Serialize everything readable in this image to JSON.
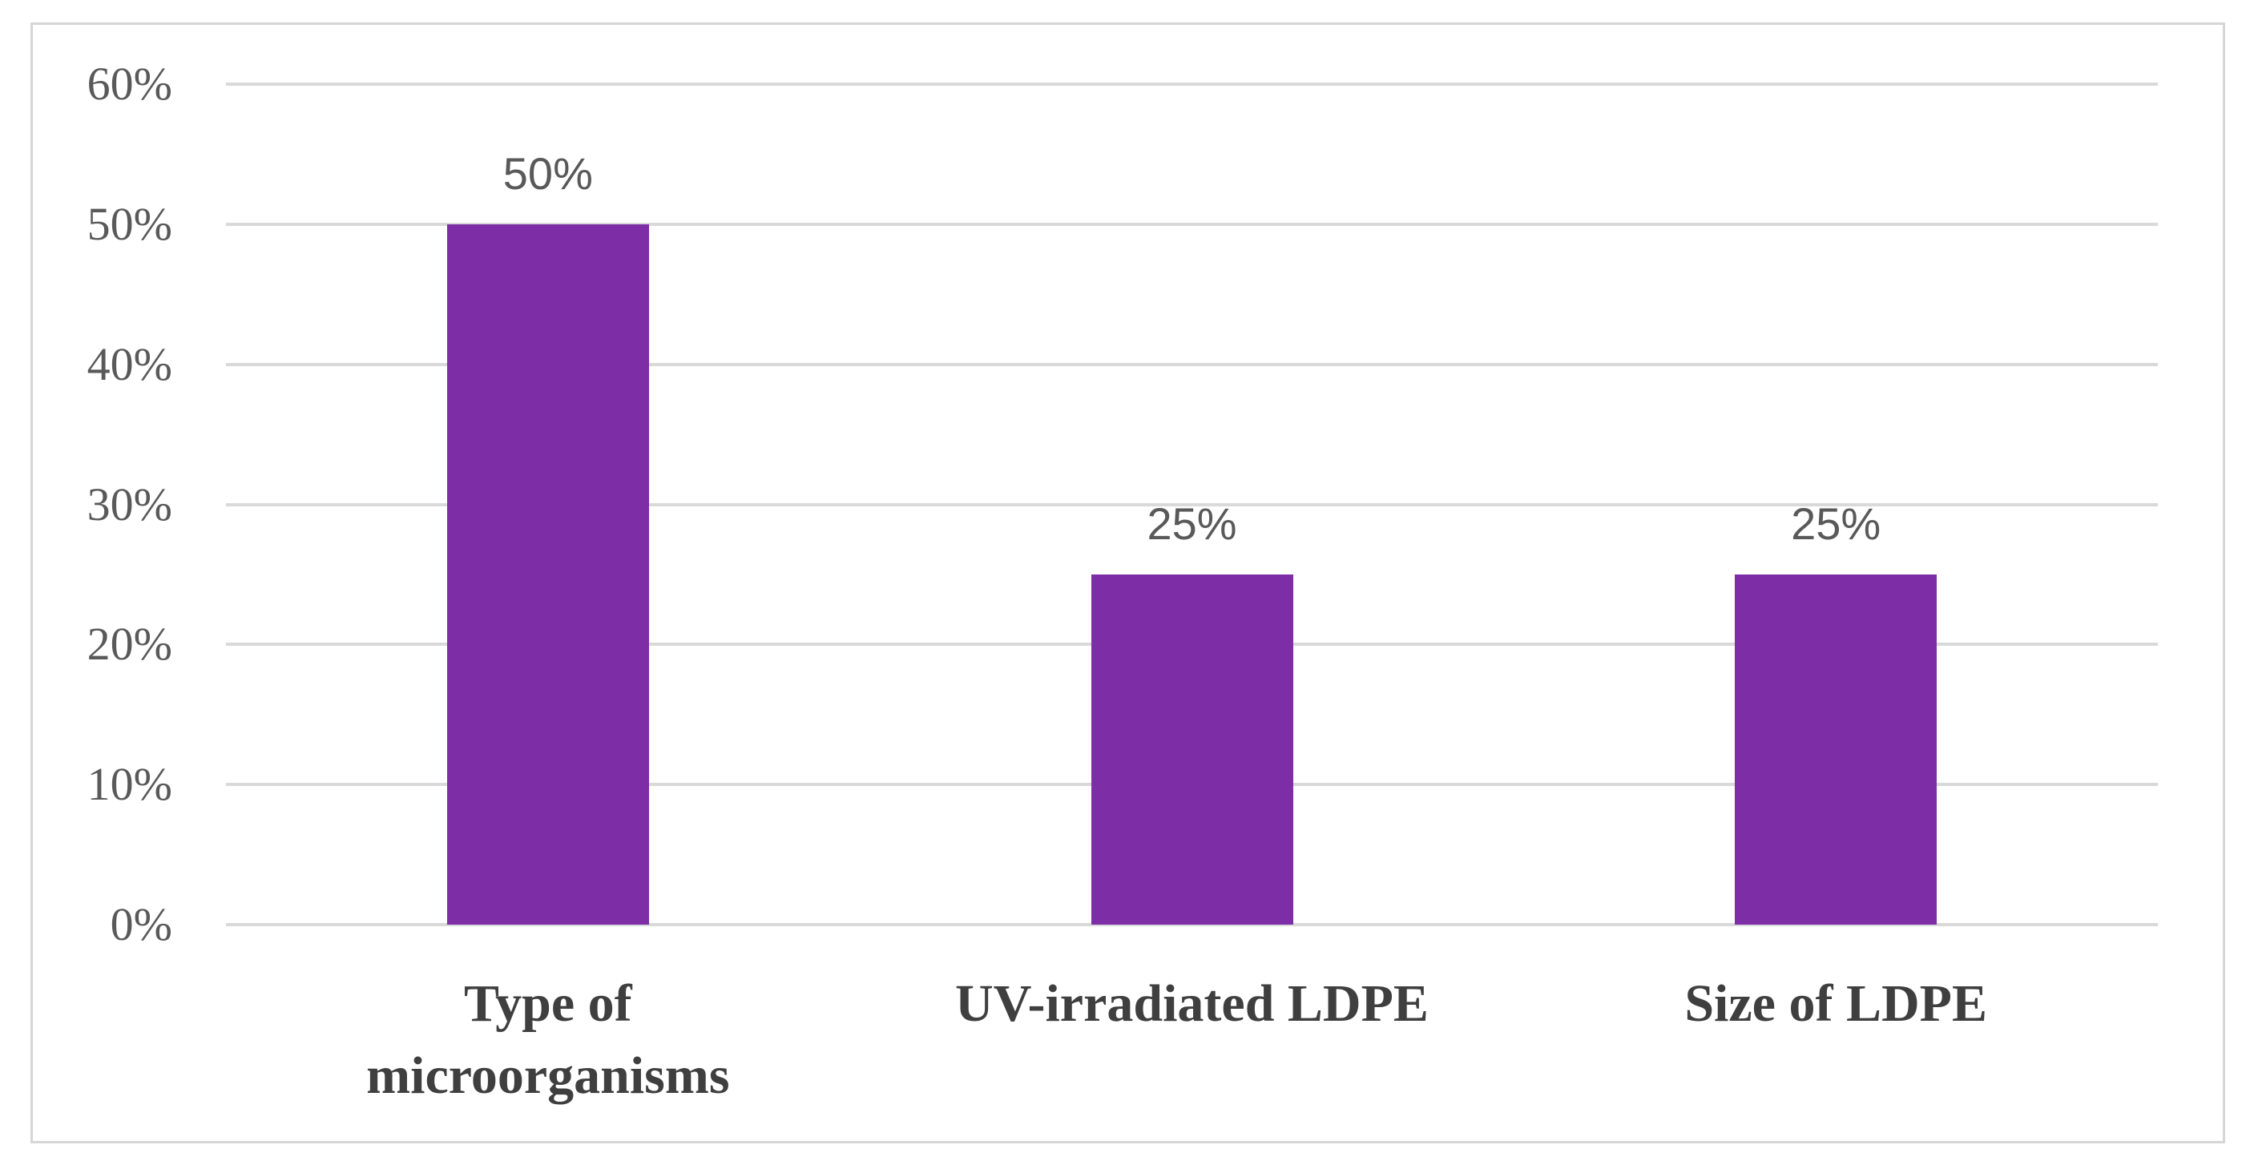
{
  "chart_data": {
    "type": "bar",
    "title": "",
    "xlabel": "",
    "ylabel": "",
    "categories": [
      "Type of microorganisms",
      "UV-irradiated LDPE",
      "Size of LDPE"
    ],
    "category_lines": [
      [
        "Type of",
        "microorganisms"
      ],
      [
        "UV-irradiated LDPE"
      ],
      [
        "Size of LDPE"
      ]
    ],
    "values": [
      50,
      25,
      25
    ],
    "data_labels": [
      "50%",
      "25%",
      "25%"
    ],
    "y_ticks": [
      {
        "value": 60,
        "label": "60%"
      },
      {
        "value": 50,
        "label": "50%"
      },
      {
        "value": 40,
        "label": "40%"
      },
      {
        "value": 30,
        "label": "30%"
      },
      {
        "value": 20,
        "label": "20%"
      },
      {
        "value": 10,
        "label": "10%"
      },
      {
        "value": 0,
        "label": "0%"
      }
    ],
    "ylim": [
      0,
      60
    ],
    "grid": true,
    "legend_position": "none",
    "colors": {
      "bar": "#7D2EA6",
      "gridline": "#D9D9D9",
      "axis_line": "#D9D9D9",
      "frame_border": "#D6D6D6",
      "tick_text": "#595959",
      "data_label_text": "#595959",
      "category_text": "#3F3F3F",
      "background": "#FFFFFF"
    }
  }
}
